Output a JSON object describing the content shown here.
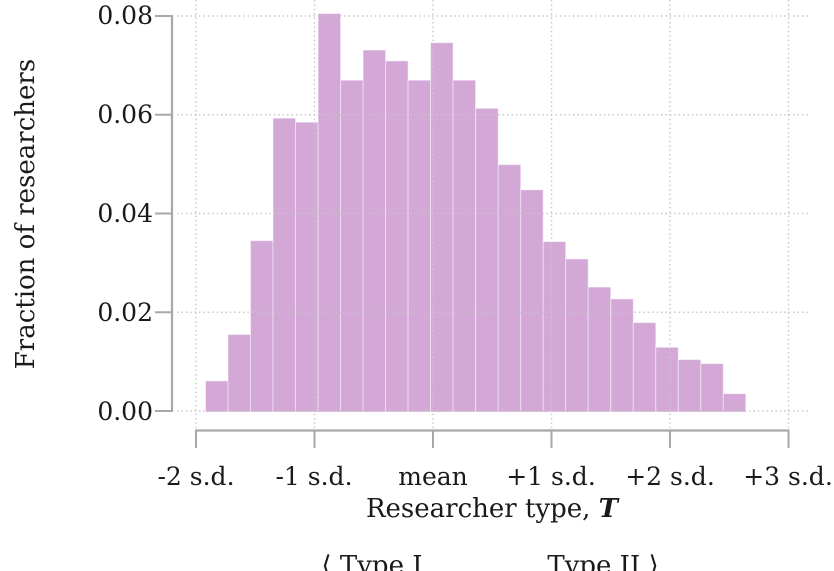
{
  "chart_data": {
    "type": "bar",
    "subtype": "histogram",
    "ylabel": "Fraction of researchers",
    "xlabel_prefix": "Researcher type, ",
    "xlabel_var": "T",
    "x_tick_labels": [
      "-2 s.d.",
      "-1 s.d.",
      "mean",
      "+1 s.d.",
      "+2 s.d.",
      "+3 s.d."
    ],
    "x_tick_positions_sd": [
      -2,
      -1,
      0,
      1,
      2,
      3
    ],
    "y_tick_labels": [
      "0.00",
      "0.02",
      "0.04",
      "0.06",
      "0.08"
    ],
    "y_tick_values": [
      0.0,
      0.02,
      0.04,
      0.06,
      0.08
    ],
    "ylim": [
      0,
      0.0805
    ],
    "xlim_sd": [
      -2.2,
      3.4
    ],
    "bins_sd": {
      "start": -1.92,
      "width": 0.19
    },
    "values": [
      0.0061,
      0.0155,
      0.0345,
      0.0593,
      0.0585,
      0.0805,
      0.067,
      0.0731,
      0.0709,
      0.067,
      0.0746,
      0.067,
      0.0613,
      0.0499,
      0.0448,
      0.0343,
      0.0308,
      0.0251,
      0.0227,
      0.0179,
      0.0129,
      0.0104,
      0.0096,
      0.0035
    ],
    "grid": "dotted, at every tick, drawn over bars",
    "legend_position": "none",
    "annotations": {
      "left": "⟨ Type I",
      "right": "Type II ⟩"
    },
    "colors": {
      "bar_fill": "#d3a8d7",
      "bar_edge": "rgba(255,255,255,0.45)",
      "grid": "#c6c6c6",
      "axis": "#a8a8a8",
      "text": "#1a1a1a",
      "background": "#ffffff"
    }
  }
}
